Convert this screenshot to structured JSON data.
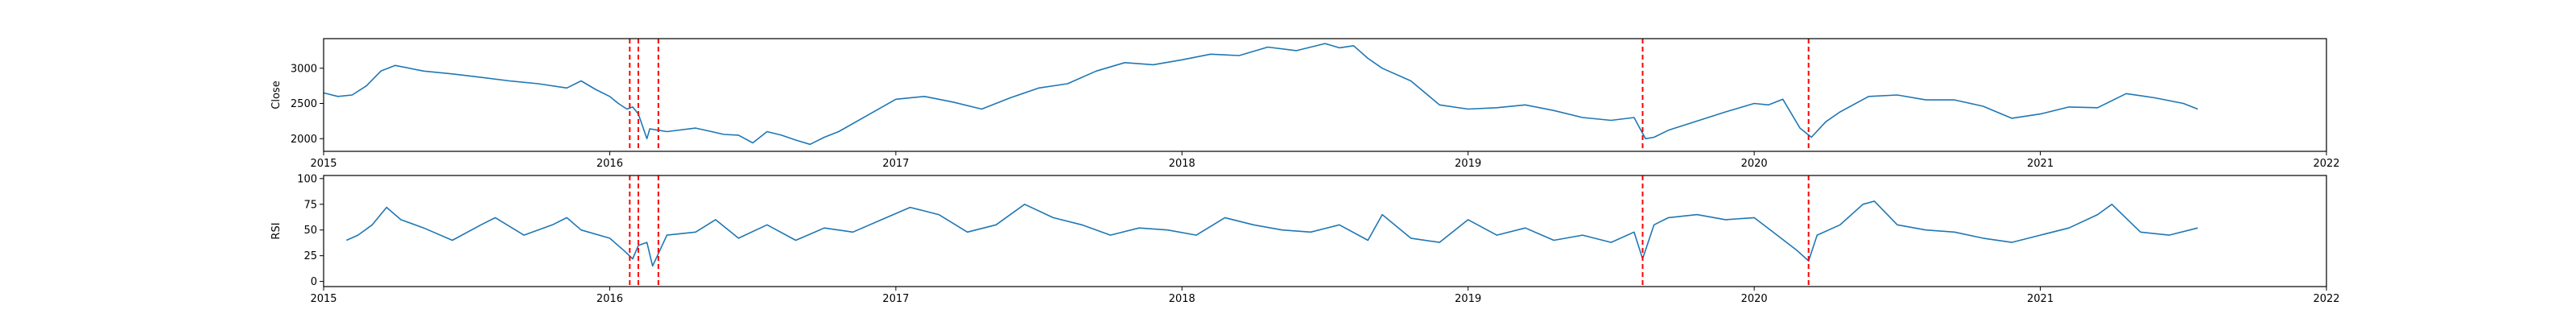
{
  "chart_data": [
    {
      "type": "line",
      "title": "",
      "xlabel": "",
      "ylabel": "Close",
      "xlim": [
        2015.0,
        2022.0
      ],
      "ylim": [
        1820,
        3420
      ],
      "x_ticks": [
        2015,
        2016,
        2017,
        2018,
        2019,
        2020,
        2021,
        2022
      ],
      "y_ticks": [
        2000,
        2500,
        3000
      ],
      "grid": false,
      "series": [
        {
          "color": "#1f77b4",
          "x": [
            2015.0,
            2015.05,
            2015.1,
            2015.15,
            2015.2,
            2015.25,
            2015.35,
            2015.45,
            2015.55,
            2015.65,
            2015.75,
            2015.85,
            2015.9,
            2015.95,
            2016.0,
            2016.03,
            2016.06,
            2016.08,
            2016.1,
            2016.13,
            2016.14,
            2016.17,
            2016.2,
            2016.3,
            2016.4,
            2016.45,
            2016.5,
            2016.55,
            2016.6,
            2016.65,
            2016.7,
            2016.75,
            2016.8,
            2016.9,
            2017.0,
            2017.1,
            2017.2,
            2017.3,
            2017.4,
            2017.5,
            2017.6,
            2017.7,
            2017.8,
            2017.9,
            2018.0,
            2018.1,
            2018.2,
            2018.3,
            2018.4,
            2018.5,
            2018.55,
            2018.6,
            2018.65,
            2018.7,
            2018.8,
            2018.9,
            2019.0,
            2019.1,
            2019.2,
            2019.3,
            2019.4,
            2019.5,
            2019.58,
            2019.62,
            2019.65,
            2019.7,
            2019.8,
            2019.9,
            2020.0,
            2020.05,
            2020.1,
            2020.16,
            2020.2,
            2020.25,
            2020.3,
            2020.4,
            2020.5,
            2020.6,
            2020.7,
            2020.8,
            2020.9,
            2021.0,
            2021.1,
            2021.2,
            2021.3,
            2021.4,
            2021.5,
            2021.55
          ],
          "y": [
            2650,
            2600,
            2620,
            2750,
            2960,
            3040,
            2960,
            2920,
            2870,
            2820,
            2780,
            2720,
            2820,
            2700,
            2600,
            2500,
            2420,
            2450,
            2350,
            2000,
            2140,
            2120,
            2100,
            2150,
            2060,
            2050,
            1940,
            2100,
            2050,
            1980,
            1920,
            2020,
            2100,
            2330,
            2560,
            2600,
            2520,
            2420,
            2580,
            2720,
            2780,
            2960,
            3080,
            3050,
            3120,
            3200,
            3180,
            3300,
            3250,
            3350,
            3290,
            3320,
            3140,
            3000,
            2820,
            2480,
            2420,
            2440,
            2480,
            2400,
            2300,
            2260,
            2300,
            2000,
            2020,
            2120,
            2250,
            2380,
            2500,
            2480,
            2560,
            2150,
            2020,
            2240,
            2380,
            2600,
            2620,
            2550,
            2550,
            2460,
            2290,
            2350,
            2450,
            2440,
            2640,
            2580,
            2500,
            2420
          ]
        }
      ],
      "annotations": [
        {
          "type": "vline",
          "x": 2016.07,
          "color": "#ff0000",
          "style": "dashed"
        },
        {
          "type": "vline",
          "x": 2016.1,
          "color": "#ff0000",
          "style": "dashed"
        },
        {
          "type": "vline",
          "x": 2016.17,
          "color": "#ff0000",
          "style": "dashed"
        },
        {
          "type": "vline",
          "x": 2019.61,
          "color": "#ff0000",
          "style": "dashed"
        },
        {
          "type": "vline",
          "x": 2020.19,
          "color": "#ff0000",
          "style": "dashed"
        }
      ]
    },
    {
      "type": "line",
      "title": "",
      "xlabel": "",
      "ylabel": "RSI",
      "xlim": [
        2015.0,
        2022.0
      ],
      "ylim": [
        -5,
        103
      ],
      "x_ticks": [
        2015,
        2016,
        2017,
        2018,
        2019,
        2020,
        2021,
        2022
      ],
      "y_ticks": [
        0,
        25,
        50,
        75,
        100
      ],
      "grid": false,
      "series": [
        {
          "color": "#1f77b4",
          "x": [
            2015.08,
            2015.12,
            2015.17,
            2015.22,
            2015.27,
            2015.35,
            2015.45,
            2015.55,
            2015.6,
            2015.7,
            2015.8,
            2015.85,
            2015.9,
            2016.0,
            2016.05,
            2016.08,
            2016.1,
            2016.13,
            2016.15,
            2016.2,
            2016.3,
            2016.37,
            2016.45,
            2016.55,
            2016.65,
            2016.75,
            2016.85,
            2016.95,
            2017.05,
            2017.15,
            2017.25,
            2017.35,
            2017.45,
            2017.55,
            2017.65,
            2017.75,
            2017.85,
            2017.95,
            2018.05,
            2018.15,
            2018.25,
            2018.35,
            2018.45,
            2018.55,
            2018.65,
            2018.7,
            2018.8,
            2018.9,
            2019.0,
            2019.1,
            2019.2,
            2019.3,
            2019.4,
            2019.5,
            2019.58,
            2019.61,
            2019.65,
            2019.7,
            2019.8,
            2019.9,
            2020.0,
            2020.08,
            2020.15,
            2020.19,
            2020.22,
            2020.3,
            2020.38,
            2020.42,
            2020.5,
            2020.6,
            2020.7,
            2020.8,
            2020.9,
            2021.0,
            2021.1,
            2021.2,
            2021.25,
            2021.35,
            2021.45,
            2021.55
          ],
          "y": [
            40,
            45,
            55,
            72,
            60,
            52,
            40,
            55,
            62,
            45,
            55,
            62,
            50,
            42,
            30,
            22,
            35,
            38,
            15,
            45,
            48,
            60,
            42,
            55,
            40,
            52,
            48,
            60,
            72,
            65,
            48,
            55,
            75,
            62,
            55,
            45,
            52,
            50,
            45,
            62,
            55,
            50,
            48,
            55,
            40,
            65,
            42,
            38,
            60,
            45,
            52,
            40,
            45,
            38,
            48,
            22,
            55,
            62,
            65,
            60,
            62,
            45,
            30,
            20,
            45,
            55,
            75,
            78,
            55,
            50,
            48,
            42,
            38,
            45,
            52,
            65,
            75,
            48,
            45,
            52
          ]
        }
      ],
      "annotations": [
        {
          "type": "vline",
          "x": 2016.07,
          "color": "#ff0000",
          "style": "dashed"
        },
        {
          "type": "vline",
          "x": 2016.1,
          "color": "#ff0000",
          "style": "dashed"
        },
        {
          "type": "vline",
          "x": 2016.17,
          "color": "#ff0000",
          "style": "dashed"
        },
        {
          "type": "vline",
          "x": 2019.61,
          "color": "#ff0000",
          "style": "dashed"
        },
        {
          "type": "vline",
          "x": 2020.19,
          "color": "#ff0000",
          "style": "dashed"
        }
      ]
    }
  ]
}
